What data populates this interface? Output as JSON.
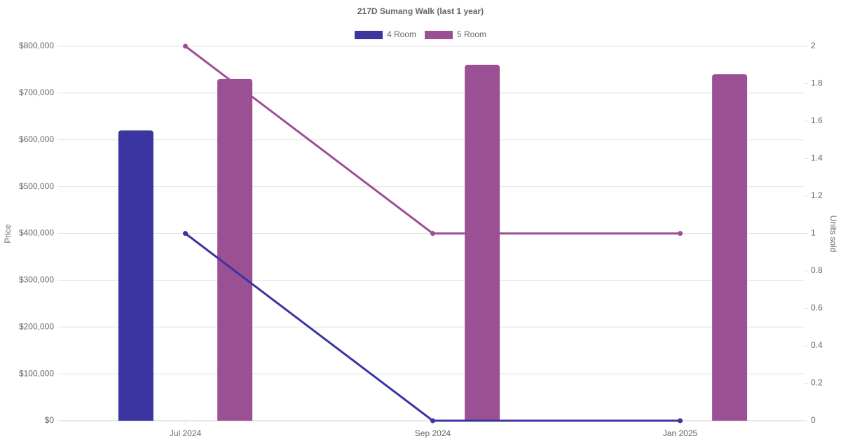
{
  "chart_data": {
    "type": "bar-line",
    "title": "217D Sumang Walk (last 1 year)",
    "y_label": "Price",
    "y2_label": "Units sold",
    "categories": [
      "Jul 2024",
      "Sep 2024",
      "Jan 2025"
    ],
    "series": [
      {
        "name": "4 Room",
        "color": "#3a35a0",
        "values": [
          620000,
          null,
          null
        ],
        "units_sold": [
          1,
          0,
          0
        ]
      },
      {
        "name": "5 Room",
        "color": "#9c5094",
        "values": [
          730000,
          760000,
          740000
        ],
        "units_sold": [
          2,
          1,
          1
        ]
      }
    ],
    "ylim": [
      0,
      800000
    ],
    "yticks": [
      {
        "value": 0,
        "label": "$0"
      },
      {
        "value": 100000,
        "label": "$100,000"
      },
      {
        "value": 200000,
        "label": "$200,000"
      },
      {
        "value": 300000,
        "label": "$300,000"
      },
      {
        "value": 400000,
        "label": "$400,000"
      },
      {
        "value": 500000,
        "label": "$500,000"
      },
      {
        "value": 600000,
        "label": "$600,000"
      },
      {
        "value": 700000,
        "label": "$700,000"
      },
      {
        "value": 800000,
        "label": "$800,000"
      }
    ],
    "y2lim": [
      0,
      2
    ],
    "y2ticks": [
      0,
      0.2,
      0.4,
      0.6,
      0.8,
      1,
      1.2,
      1.4,
      1.6,
      1.8,
      2
    ],
    "grid": true,
    "legend": "top"
  }
}
